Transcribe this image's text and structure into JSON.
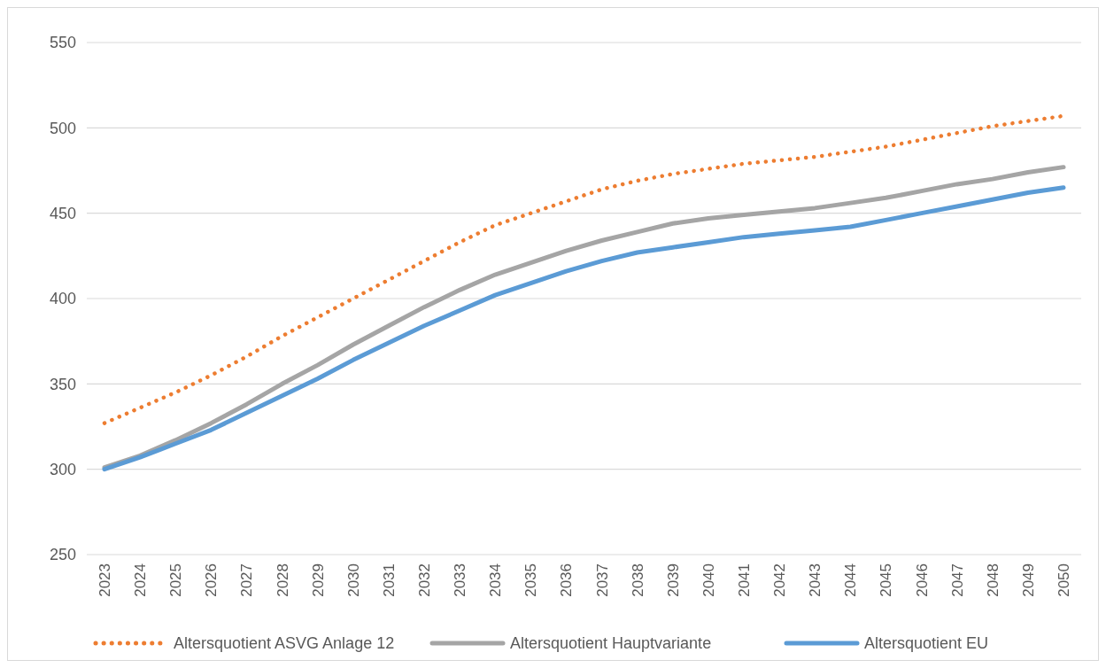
{
  "chart_data": {
    "type": "line",
    "categories": [
      "2023",
      "2024",
      "2025",
      "2026",
      "2027",
      "2028",
      "2029",
      "2030",
      "2031",
      "2032",
      "2033",
      "2034",
      "2035",
      "2036",
      "2037",
      "2038",
      "2039",
      "2040",
      "2041",
      "2042",
      "2043",
      "2044",
      "2045",
      "2046",
      "2047",
      "2048",
      "2049",
      "2050"
    ],
    "series": [
      {
        "name": "Altersquotient ASVG Anlage 12",
        "color": "#ed7d31",
        "line_style": "dotted",
        "values": [
          327,
          336,
          345,
          355,
          366,
          378,
          389,
          400,
          411,
          422,
          433,
          443,
          450,
          457,
          464,
          469,
          473,
          476,
          479,
          481,
          483,
          486,
          489,
          493,
          497,
          501,
          504,
          507
        ]
      },
      {
        "name": "Altersquotient Hauptvariante",
        "color": "#a5a5a5",
        "line_style": "solid",
        "values": [
          301,
          308,
          317,
          327,
          338,
          350,
          361,
          373,
          384,
          395,
          405,
          414,
          421,
          428,
          434,
          439,
          444,
          447,
          449,
          451,
          453,
          456,
          459,
          463,
          467,
          470,
          474,
          477
        ]
      },
      {
        "name": "Altersquotient EU",
        "color": "#5b9bd5",
        "line_style": "solid",
        "values": [
          300,
          307,
          315,
          323,
          333,
          343,
          353,
          364,
          374,
          384,
          393,
          402,
          409,
          416,
          422,
          427,
          430,
          433,
          436,
          438,
          440,
          442,
          446,
          450,
          454,
          458,
          462,
          465
        ]
      }
    ],
    "ylim": [
      250,
      550
    ],
    "yticks": [
      250,
      300,
      350,
      400,
      450,
      500,
      550
    ],
    "grid": "y",
    "legend": "bottom",
    "marker": "none"
  }
}
